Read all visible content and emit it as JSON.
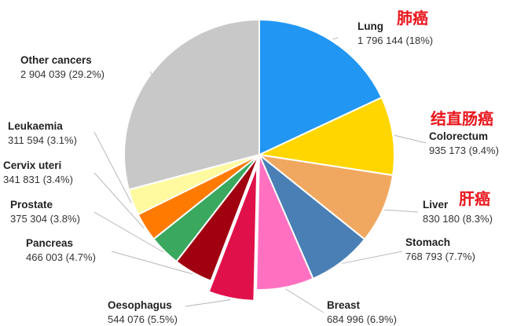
{
  "chart_data": {
    "type": "pie",
    "title": "",
    "slices": [
      {
        "name": "Lung",
        "value_text": "1 796 144 (18%)",
        "value": 1796144,
        "percent": 18.0,
        "color": "#2196f3",
        "cn": "肺癌"
      },
      {
        "name": "Colorectum",
        "value_text": "935 173 (9.4%)",
        "value": 935173,
        "percent": 9.4,
        "color": "#ffd600",
        "cn": "结直肠癌"
      },
      {
        "name": "Liver",
        "value_text": "830 180 (8.3%)",
        "value": 830180,
        "percent": 8.3,
        "color": "#f0a860",
        "cn": "肝癌"
      },
      {
        "name": "Stomach",
        "value_text": "768 793 (7.7%)",
        "value": 768793,
        "percent": 7.7,
        "color": "#4a7fb5",
        "cn": ""
      },
      {
        "name": "Breast",
        "value_text": "684 996 (6.9%)",
        "value": 684996,
        "percent": 6.9,
        "color": "#ff70c0",
        "cn": ""
      },
      {
        "name": "Oesophagus",
        "value_text": "544 076 (5.5%)",
        "value": 544076,
        "percent": 5.5,
        "color": "#e0114a",
        "cn": ""
      },
      {
        "name": "Pancreas",
        "value_text": "466 003 (4.7%)",
        "value": 466003,
        "percent": 4.7,
        "color": "#a00010",
        "cn": ""
      },
      {
        "name": "Prostate",
        "value_text": "375 304 (3.8%)",
        "value": 375304,
        "percent": 3.8,
        "color": "#3aa85e",
        "cn": ""
      },
      {
        "name": "Cervix uteri",
        "value_text": "341 831 (3.4%)",
        "value": 341831,
        "percent": 3.4,
        "color": "#ff7a00",
        "cn": ""
      },
      {
        "name": "Leukaemia",
        "value_text": "311 594 (3.1%)",
        "value": 311594,
        "percent": 3.1,
        "color": "#fffaa0",
        "cn": ""
      },
      {
        "name": "Other cancers",
        "value_text": "2 904 039 (29.2%)",
        "value": 2904039,
        "percent": 29.2,
        "color": "#c8c8c8",
        "cn": ""
      }
    ],
    "start_angle_deg": 0,
    "direction": "clockwise",
    "exploded_slice": "Oesophagus"
  }
}
